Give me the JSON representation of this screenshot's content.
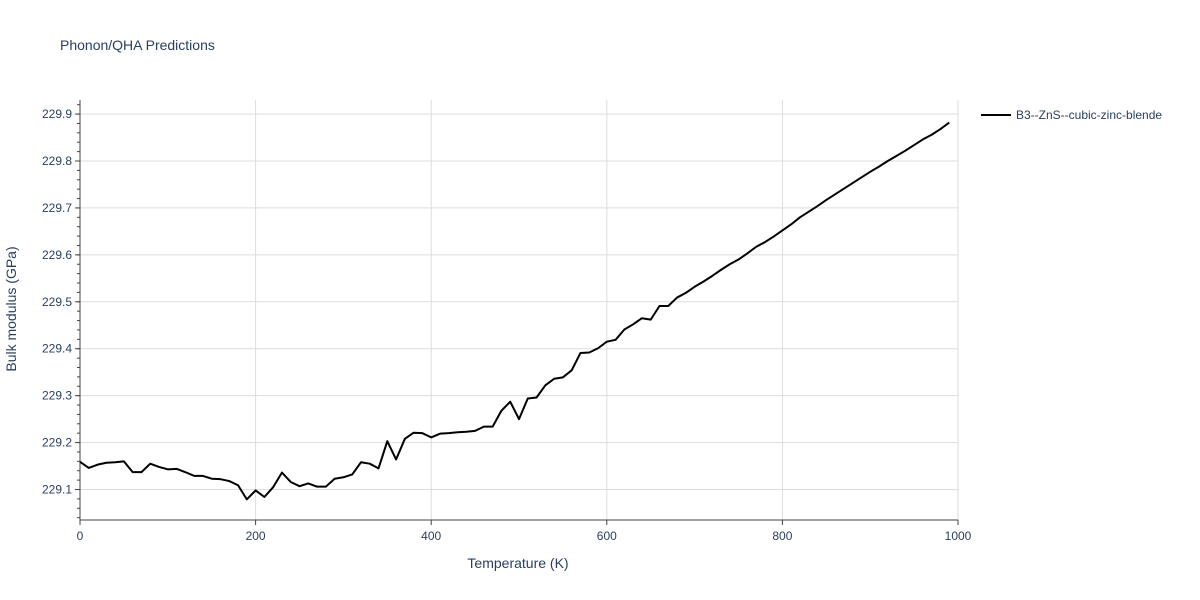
{
  "chart_data": {
    "type": "line",
    "title": "Phonon/QHA Predictions",
    "xlabel": "Temperature (K)",
    "ylabel": "Bulk modulus (GPa)",
    "xlim": [
      0,
      1000
    ],
    "ylim": [
      229.035,
      229.93
    ],
    "xticks": [
      0,
      200,
      400,
      600,
      800,
      1000
    ],
    "yticks": [
      229.1,
      229.2,
      229.3,
      229.4,
      229.5,
      229.6,
      229.7,
      229.8,
      229.9
    ],
    "grid": true,
    "legend_position": "top-right",
    "series": [
      {
        "name": "B3--ZnS--cubic-zinc-blende",
        "color": "#000000",
        "x": [
          0,
          10,
          20,
          30,
          40,
          50,
          60,
          70,
          80,
          90,
          100,
          110,
          120,
          130,
          140,
          150,
          160,
          170,
          180,
          190,
          200,
          210,
          220,
          230,
          240,
          250,
          260,
          270,
          280,
          290,
          300,
          310,
          320,
          330,
          340,
          350,
          360,
          370,
          380,
          390,
          400,
          410,
          420,
          430,
          440,
          450,
          460,
          470,
          480,
          490,
          500,
          510,
          520,
          530,
          540,
          550,
          560,
          570,
          580,
          590,
          600,
          610,
          620,
          630,
          640,
          650,
          660,
          670,
          680,
          690,
          700,
          710,
          720,
          730,
          740,
          750,
          760,
          770,
          780,
          790,
          800,
          810,
          820,
          830,
          840,
          850,
          860,
          870,
          880,
          890,
          900,
          910,
          920,
          930,
          940,
          950,
          960,
          970,
          980,
          990
        ],
        "y": [
          229.159,
          229.146,
          229.153,
          229.157,
          229.158,
          229.16,
          229.137,
          229.137,
          229.155,
          229.148,
          229.143,
          229.144,
          229.137,
          229.129,
          229.129,
          229.123,
          229.122,
          229.118,
          229.109,
          229.079,
          229.098,
          229.084,
          229.105,
          229.136,
          229.116,
          229.107,
          229.113,
          229.106,
          229.106,
          229.123,
          229.126,
          229.132,
          229.158,
          229.155,
          229.145,
          229.203,
          229.164,
          229.208,
          229.221,
          229.22,
          229.211,
          229.219,
          229.22,
          229.222,
          229.223,
          229.225,
          229.234,
          229.234,
          229.268,
          229.287,
          229.25,
          229.294,
          229.296,
          229.322,
          229.336,
          229.339,
          229.354,
          229.391,
          229.392,
          229.401,
          229.415,
          229.419,
          229.441,
          229.452,
          229.465,
          229.462,
          229.491,
          229.491,
          229.509,
          229.519,
          229.532,
          229.543,
          229.555,
          229.568,
          229.58,
          229.59,
          229.603,
          229.617,
          229.627,
          229.639,
          229.652,
          229.665,
          229.68,
          229.692,
          229.704,
          229.717,
          229.729,
          229.741,
          229.753,
          229.765,
          229.777,
          229.788,
          229.8,
          229.811,
          229.822,
          229.834,
          229.846,
          229.856,
          229.868,
          229.882
        ]
      }
    ]
  }
}
